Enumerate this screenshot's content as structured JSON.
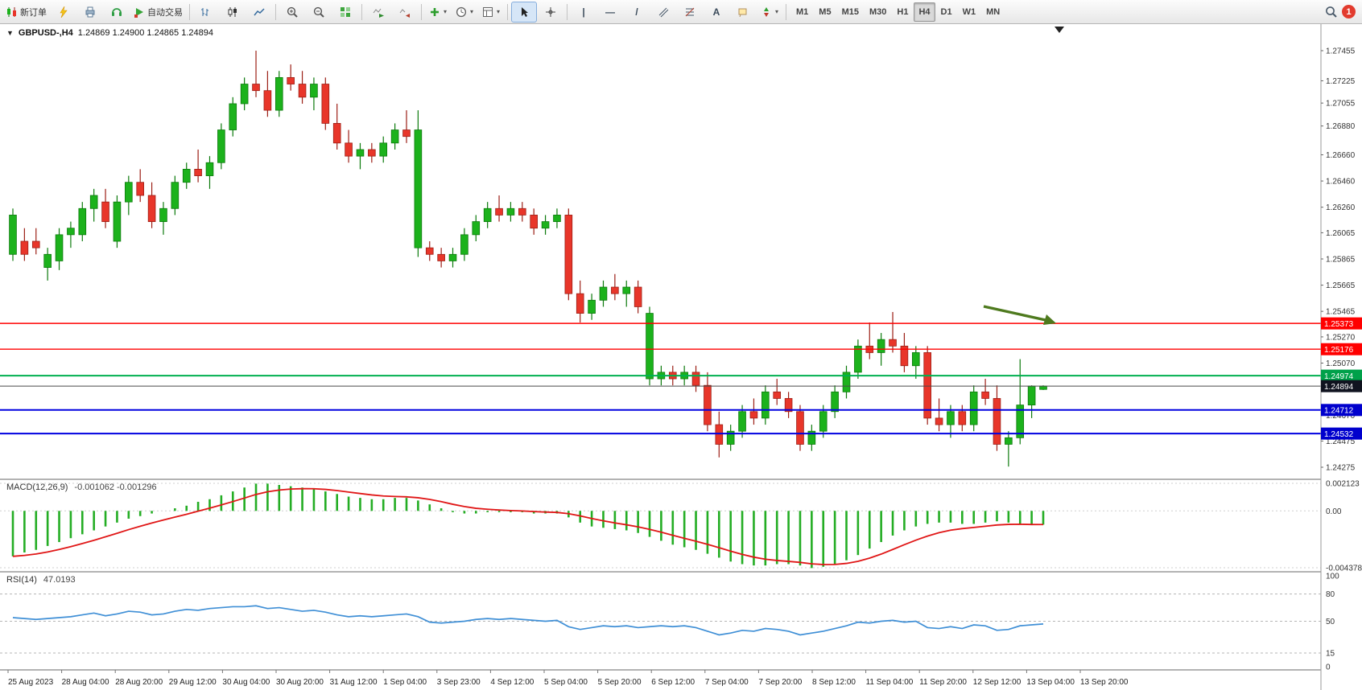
{
  "toolbar": {
    "new_order_label": "新订单",
    "auto_trading_label": "自动交易",
    "timeframes": [
      "M1",
      "M5",
      "M15",
      "M30",
      "H1",
      "H4",
      "D1",
      "W1",
      "MN"
    ],
    "active_timeframe": "H4",
    "notification_count": "1"
  },
  "chart": {
    "symbol_title": "GBPUSD-,H4",
    "ohlc_text": "1.24869 1.24900 1.24865 1.24894",
    "price_axis_labels": [
      "1.27455",
      "1.27225",
      "1.27055",
      "1.26880",
      "1.26660",
      "1.26460",
      "1.26260",
      "1.26065",
      "1.25865",
      "1.25665",
      "1.25465",
      "1.25270",
      "1.25070",
      "1.24670",
      "1.24475",
      "1.24275"
    ],
    "time_axis_labels": [
      "25 Aug 2023",
      "28 Aug 04:00",
      "28 Aug 20:00",
      "29 Aug 12:00",
      "30 Aug 04:00",
      "30 Aug 20:00",
      "31 Aug 12:00",
      "1 Sep 04:00",
      "3 Sep 23:00",
      "4 Sep 12:00",
      "5 Sep 04:00",
      "5 Sep 20:00",
      "6 Sep 12:00",
      "7 Sep 04:00",
      "7 Sep 20:00",
      "8 Sep 12:00",
      "11 Sep 04:00",
      "11 Sep 20:00",
      "12 Sep 12:00",
      "13 Sep 04:00",
      "13 Sep 20:00"
    ],
    "levels": [
      {
        "label": "1.25373",
        "price": 1.25373,
        "color": "#ff0000",
        "width": 1.4,
        "badge": "#ff0000"
      },
      {
        "label": "1.25176",
        "price": 1.25176,
        "color": "#ff0000",
        "width": 1.4,
        "badge": "#ff0000"
      },
      {
        "label": "1.24974",
        "price": 1.24974,
        "color": "#00b050",
        "width": 2,
        "badge": "#00a14a"
      },
      {
        "label": "1.24894",
        "price": 1.24894,
        "color": "#4a4a4a",
        "width": 1,
        "badge": "#10131f",
        "current": true
      },
      {
        "label": "1.24712",
        "price": 1.24712,
        "color": "#0000e0",
        "width": 2,
        "badge": "#0000cd"
      },
      {
        "label": "1.24532",
        "price": 1.24532,
        "color": "#0000e0",
        "width": 2,
        "badge": "#0000cd"
      }
    ]
  },
  "macd_panel": {
    "label": "MACD(12,26,9)",
    "values_text": "-0.001062 -0.001296",
    "axis_labels": [
      "0.002123",
      "0.00",
      "-0.004378"
    ]
  },
  "rsi_panel": {
    "label": "RSI(14)",
    "value_text": "47.0193",
    "axis_labels": [
      "100",
      "80",
      "50",
      "15",
      "0"
    ]
  },
  "colors": {
    "bull": "#1cb21c",
    "bear": "#e8362a",
    "macd_hist": "#24ad24",
    "macd_signal": "#e01616",
    "rsi_line": "#3f8fd6",
    "arrow": "#4e7a1e"
  },
  "chart_data": {
    "type": "candlestick",
    "title": "GBPUSD- H4",
    "price_range": [
      1.24275,
      1.27455
    ],
    "candles": [
      [
        1.259,
        1.2625,
        1.2585,
        1.262
      ],
      [
        1.26,
        1.261,
        1.2585,
        1.259
      ],
      [
        1.26,
        1.261,
        1.259,
        1.2595
      ],
      [
        1.258,
        1.2595,
        1.257,
        1.259
      ],
      [
        1.2585,
        1.261,
        1.2578,
        1.2605
      ],
      [
        1.2605,
        1.2615,
        1.2595,
        1.261
      ],
      [
        1.2605,
        1.263,
        1.26,
        1.2625
      ],
      [
        1.2625,
        1.264,
        1.2615,
        1.2635
      ],
      [
        1.263,
        1.264,
        1.261,
        1.2615
      ],
      [
        1.26,
        1.2635,
        1.2595,
        1.263
      ],
      [
        1.263,
        1.265,
        1.262,
        1.2645
      ],
      [
        1.2645,
        1.2655,
        1.263,
        1.2635
      ],
      [
        1.2635,
        1.2645,
        1.261,
        1.2615
      ],
      [
        1.2615,
        1.263,
        1.2605,
        1.2625
      ],
      [
        1.2625,
        1.265,
        1.262,
        1.2645
      ],
      [
        1.2645,
        1.266,
        1.264,
        1.2655
      ],
      [
        1.2655,
        1.267,
        1.2645,
        1.265
      ],
      [
        1.265,
        1.2665,
        1.264,
        1.266
      ],
      [
        1.266,
        1.269,
        1.2655,
        1.2685
      ],
      [
        1.2685,
        1.271,
        1.268,
        1.2705
      ],
      [
        1.2705,
        1.2725,
        1.27,
        1.272
      ],
      [
        1.272,
        1.27455,
        1.271,
        1.2715
      ],
      [
        1.2715,
        1.273,
        1.2695,
        1.27
      ],
      [
        1.27,
        1.273,
        1.2695,
        1.2725
      ],
      [
        1.2725,
        1.2735,
        1.2715,
        1.272
      ],
      [
        1.272,
        1.273,
        1.2705,
        1.271
      ],
      [
        1.271,
        1.2725,
        1.27,
        1.272
      ],
      [
        1.272,
        1.2725,
        1.2685,
        1.269
      ],
      [
        1.269,
        1.2705,
        1.267,
        1.2675
      ],
      [
        1.2675,
        1.2685,
        1.266,
        1.2665
      ],
      [
        1.2665,
        1.2675,
        1.2655,
        1.267
      ],
      [
        1.267,
        1.2675,
        1.266,
        1.2665
      ],
      [
        1.2665,
        1.268,
        1.266,
        1.2675
      ],
      [
        1.2675,
        1.269,
        1.267,
        1.2685
      ],
      [
        1.2685,
        1.27,
        1.2675,
        1.268
      ],
      [
        1.2595,
        1.27,
        1.2588,
        1.2685
      ],
      [
        1.2595,
        1.26,
        1.2585,
        1.259
      ],
      [
        1.259,
        1.2595,
        1.258,
        1.2585
      ],
      [
        1.2585,
        1.2595,
        1.258,
        1.259
      ],
      [
        1.259,
        1.261,
        1.2585,
        1.2605
      ],
      [
        1.2605,
        1.262,
        1.26,
        1.2615
      ],
      [
        1.2615,
        1.263,
        1.261,
        1.2625
      ],
      [
        1.2625,
        1.2635,
        1.2615,
        1.262
      ],
      [
        1.262,
        1.263,
        1.2615,
        1.2625
      ],
      [
        1.2625,
        1.263,
        1.2615,
        1.262
      ],
      [
        1.262,
        1.2625,
        1.2605,
        1.261
      ],
      [
        1.261,
        1.262,
        1.2605,
        1.2615
      ],
      [
        1.2615,
        1.2625,
        1.261,
        1.262
      ],
      [
        1.262,
        1.2625,
        1.2555,
        1.256
      ],
      [
        1.256,
        1.257,
        1.2538,
        1.2545
      ],
      [
        1.2545,
        1.256,
        1.254,
        1.2555
      ],
      [
        1.2555,
        1.257,
        1.255,
        1.2565
      ],
      [
        1.2565,
        1.2575,
        1.2555,
        1.256
      ],
      [
        1.256,
        1.257,
        1.255,
        1.2565
      ],
      [
        1.2565,
        1.257,
        1.2545,
        1.255
      ],
      [
        1.2495,
        1.255,
        1.249,
        1.2545
      ],
      [
        1.2495,
        1.2505,
        1.249,
        1.25
      ],
      [
        1.25,
        1.2505,
        1.249,
        1.2495
      ],
      [
        1.2495,
        1.2505,
        1.249,
        1.25
      ],
      [
        1.25,
        1.2505,
        1.2485,
        1.249
      ],
      [
        1.249,
        1.25,
        1.2455,
        1.246
      ],
      [
        1.246,
        1.247,
        1.2435,
        1.2445
      ],
      [
        1.2445,
        1.246,
        1.244,
        1.2455
      ],
      [
        1.2455,
        1.2475,
        1.245,
        1.247
      ],
      [
        1.247,
        1.248,
        1.246,
        1.2465
      ],
      [
        1.2465,
        1.249,
        1.246,
        1.2485
      ],
      [
        1.2485,
        1.2495,
        1.2475,
        1.248
      ],
      [
        1.248,
        1.2485,
        1.2465,
        1.247
      ],
      [
        1.247,
        1.2475,
        1.244,
        1.2445
      ],
      [
        1.2445,
        1.246,
        1.244,
        1.2455
      ],
      [
        1.2455,
        1.2475,
        1.245,
        1.247
      ],
      [
        1.247,
        1.249,
        1.2465,
        1.2485
      ],
      [
        1.2485,
        1.2505,
        1.248,
        1.25
      ],
      [
        1.25,
        1.2525,
        1.2495,
        1.252
      ],
      [
        1.252,
        1.2538,
        1.251,
        1.2515
      ],
      [
        1.2515,
        1.253,
        1.2505,
        1.2525
      ],
      [
        1.2525,
        1.2546,
        1.2515,
        1.252
      ],
      [
        1.252,
        1.253,
        1.25,
        1.2505
      ],
      [
        1.2505,
        1.252,
        1.2495,
        1.2515
      ],
      [
        1.2515,
        1.252,
        1.246,
        1.2465
      ],
      [
        1.2465,
        1.248,
        1.2455,
        1.246
      ],
      [
        1.246,
        1.2475,
        1.245,
        1.247
      ],
      [
        1.247,
        1.2475,
        1.2455,
        1.246
      ],
      [
        1.246,
        1.249,
        1.2455,
        1.2485
      ],
      [
        1.2485,
        1.2495,
        1.2475,
        1.248
      ],
      [
        1.248,
        1.249,
        1.244,
        1.2445
      ],
      [
        1.2445,
        1.2455,
        1.2428,
        1.245
      ],
      [
        1.245,
        1.251,
        1.2445,
        1.2475
      ],
      [
        1.2475,
        1.249,
        1.2465,
        1.24894
      ],
      [
        1.24869,
        1.249,
        1.24865,
        1.24894
      ]
    ],
    "macd": {
      "type": "bar",
      "range": [
        -0.004378,
        0.002123
      ],
      "histogram": [
        -0.0035,
        -0.0032,
        -0.003,
        -0.0027,
        -0.0024,
        -0.0021,
        -0.0018,
        -0.0015,
        -0.0012,
        -0.0009,
        -0.0006,
        -0.0004,
        -0.0002,
        0,
        0.0002,
        0.0004,
        0.0007,
        0.0009,
        0.0012,
        0.0015,
        0.0018,
        0.0021,
        0.0021,
        0.002,
        0.0019,
        0.0018,
        0.0017,
        0.0015,
        0.0013,
        0.0011,
        0.001,
        0.0009,
        0.0009,
        0.001,
        0.001,
        0.0008,
        0.0005,
        0.0002,
        -0.0001,
        -0.0002,
        -0.0002,
        -0.0001,
        -0.0001,
        -0.0001,
        -0.0001,
        -0.0002,
        -0.0002,
        -0.0002,
        -0.0005,
        -0.0009,
        -0.0012,
        -0.0013,
        -0.0014,
        -0.0015,
        -0.0017,
        -0.002,
        -0.0023,
        -0.0026,
        -0.0028,
        -0.003,
        -0.0033,
        -0.0036,
        -0.0039,
        -0.0041,
        -0.0042,
        -0.0042,
        -0.0041,
        -0.0041,
        -0.0042,
        -0.0044,
        -0.0043,
        -0.0041,
        -0.0038,
        -0.0034,
        -0.0029,
        -0.0024,
        -0.0019,
        -0.0015,
        -0.0012,
        -0.001,
        -0.0009,
        -0.0009,
        -0.001,
        -0.001,
        -0.0009,
        -0.0008,
        -0.0009,
        -0.001,
        -0.0011,
        -0.00106
      ]
    },
    "rsi": {
      "type": "line",
      "range": [
        0,
        100
      ],
      "levels": [
        80,
        50,
        15
      ],
      "values": [
        54,
        53,
        52,
        53,
        54,
        55,
        57,
        59,
        56,
        58,
        61,
        60,
        57,
        58,
        61,
        63,
        62,
        64,
        65,
        66,
        66,
        67,
        64,
        65,
        63,
        61,
        62,
        60,
        57,
        55,
        56,
        55,
        56,
        57,
        58,
        55,
        49,
        48,
        49,
        50,
        52,
        53,
        52,
        53,
        52,
        51,
        50,
        51,
        44,
        41,
        43,
        45,
        44,
        45,
        43,
        44,
        45,
        44,
        45,
        43,
        39,
        35,
        37,
        40,
        39,
        42,
        41,
        39,
        35,
        37,
        39,
        42,
        45,
        49,
        48,
        50,
        51,
        49,
        50,
        43,
        42,
        44,
        42,
        46,
        45,
        40,
        41,
        45,
        46,
        47
      ]
    }
  }
}
